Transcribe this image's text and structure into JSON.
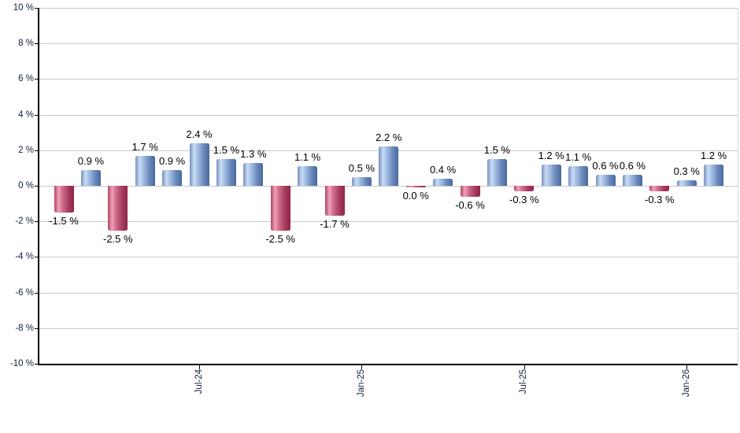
{
  "chart_data": {
    "type": "bar",
    "title": "",
    "subtitle": "",
    "xlabel": "",
    "ylabel": "",
    "unit": "%",
    "legend": "none",
    "grid": true,
    "ylim": [
      -10,
      10
    ],
    "y_tick_step": 2,
    "values": [
      -1.5,
      0.9,
      -2.5,
      1.7,
      0.9,
      2.4,
      1.5,
      1.3,
      -2.5,
      1.1,
      -1.7,
      0.5,
      2.2,
      0.0,
      0.4,
      -0.6,
      1.5,
      -0.3,
      1.2,
      1.1,
      0.6,
      0.6,
      -0.3,
      0.3,
      1.2
    ],
    "bar_labels": [
      "-1.5 %",
      "0.9 %",
      "-2.5 %",
      "1.7 %",
      "0.9 %",
      "2.4 %",
      "1.5 %",
      "1.3 %",
      "-2.5 %",
      "1.1 %",
      "-1.7 %",
      "0.5 %",
      "2.2 %",
      "0.0 %",
      "0.4 %",
      "-0.6 %",
      "1.5 %",
      "-0.3 %",
      "1.2 %",
      "1.1 %",
      "0.6 %",
      "0.6 %",
      "-0.3 %",
      "0.3 %",
      "1.2 %"
    ],
    "y_tick_labels": [
      "10 %",
      "8 %",
      "6 %",
      "4 %",
      "2 %",
      "0 %",
      "-2 %",
      "-4 %",
      "-6 %",
      "-8 %",
      "-10 %"
    ],
    "y_tick_values": [
      10,
      8,
      6,
      4,
      2,
      0,
      -2,
      -4,
      -6,
      -8,
      -10
    ],
    "x_ticks": [
      {
        "label": "Jul-24",
        "bar_index": 5
      },
      {
        "label": "Jan-25",
        "bar_index": 11
      },
      {
        "label": "Jul-25",
        "bar_index": 17
      },
      {
        "label": "Jan-26",
        "bar_index": 23
      }
    ],
    "colors": {
      "positive_gradient": [
        "#7191c0",
        "#cbdcf3",
        "#a6c2e7",
        "#6888ba",
        "#4a689e"
      ],
      "negative_gradient": [
        "#b24463",
        "#eca4ba",
        "#d5738f",
        "#a63c60",
        "#902449"
      ],
      "gridline": "#c9c9c9",
      "axis": "#000000",
      "tick_label": "#14213d",
      "data_label": "#000000",
      "background": "#ffffff"
    }
  }
}
